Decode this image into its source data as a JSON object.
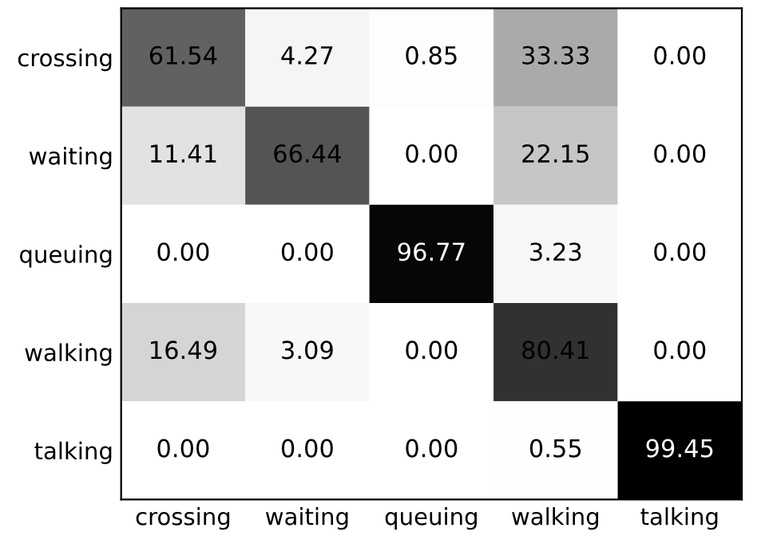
{
  "chart_data": {
    "type": "heatmap",
    "categories": [
      "crossing",
      "waiting",
      "queuing",
      "walking",
      "talking"
    ],
    "y_categories": [
      "crossing",
      "waiting",
      "queuing",
      "walking",
      "talking"
    ],
    "cells": [
      [
        61.54,
        4.27,
        0.85,
        33.33,
        0.0
      ],
      [
        11.41,
        66.44,
        0.0,
        22.15,
        0.0
      ],
      [
        0.0,
        0.0,
        96.77,
        3.23,
        0.0
      ],
      [
        16.49,
        3.09,
        0.0,
        80.41,
        0.0
      ],
      [
        0.0,
        0.0,
        0.0,
        0.55,
        99.45
      ]
    ],
    "cell_labels": [
      [
        "61.54",
        "4.27",
        "0.85",
        "33.33",
        "0.00"
      ],
      [
        "11.41",
        "66.44",
        "0.00",
        "22.15",
        "0.00"
      ],
      [
        "0.00",
        "0.00",
        "96.77",
        "3.23",
        "0.00"
      ],
      [
        "16.49",
        "3.09",
        "0.00",
        "80.41",
        "0.00"
      ],
      [
        "0.00",
        "0.00",
        "0.00",
        "0.55",
        "99.45"
      ]
    ]
  }
}
